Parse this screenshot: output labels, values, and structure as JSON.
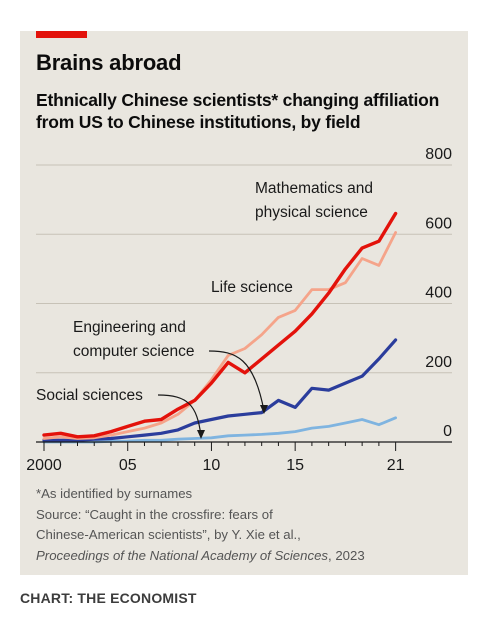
{
  "header": {
    "title": "Brains abroad",
    "subtitle": "Ethnically Chinese scientists* changing affiliation from US to Chinese institutions, by field"
  },
  "footer": {
    "footnote": "*As identified by surnames",
    "source_line1": "Source: “Caught in the crossfire: fears of",
    "source_line2": "Chinese-American scientists”, by Y. Xie et al.,",
    "source_line3_italic": "Proceedings of the National Academy of Sciences",
    "source_line3_year": ", 2023",
    "credit": "CHART: THE ECONOMIST"
  },
  "chart_data": {
    "type": "line",
    "x": [
      2000,
      2001,
      2002,
      2003,
      2004,
      2005,
      2006,
      2007,
      2008,
      2009,
      2010,
      2011,
      2012,
      2013,
      2014,
      2015,
      2016,
      2017,
      2018,
      2019,
      2020,
      2021
    ],
    "xlim": [
      2000,
      2021.5
    ],
    "ylim": [
      0,
      800
    ],
    "y_ticks": [
      0,
      200,
      400,
      600,
      800
    ],
    "x_ticks": [
      {
        "value": 2000,
        "label": "2000"
      },
      {
        "value": 2005,
        "label": "05"
      },
      {
        "value": 2010,
        "label": "10"
      },
      {
        "value": 2015,
        "label": "15"
      },
      {
        "value": 2021,
        "label": "21"
      }
    ],
    "series": [
      {
        "name": "Mathematics and physical science",
        "color": "#e3120b",
        "values": [
          20,
          25,
          15,
          18,
          30,
          45,
          60,
          65,
          95,
          120,
          170,
          230,
          200,
          240,
          280,
          320,
          370,
          430,
          500,
          560,
          580,
          660
        ]
      },
      {
        "name": "Life science",
        "color": "#f5a48a",
        "values": [
          10,
          15,
          10,
          12,
          20,
          30,
          40,
          55,
          80,
          120,
          180,
          250,
          270,
          310,
          360,
          380,
          440,
          440,
          460,
          530,
          510,
          605
        ]
      },
      {
        "name": "Engineering and computer science",
        "color": "#2b3d9c",
        "values": [
          5,
          5,
          5,
          8,
          10,
          15,
          20,
          25,
          35,
          55,
          65,
          75,
          80,
          85,
          120,
          100,
          155,
          150,
          170,
          190,
          240,
          295
        ]
      },
      {
        "name": "Social sciences",
        "color": "#7fb4e0",
        "values": [
          0,
          0,
          0,
          0,
          2,
          3,
          5,
          5,
          8,
          10,
          12,
          18,
          20,
          22,
          25,
          30,
          40,
          45,
          55,
          65,
          50,
          70
        ]
      }
    ],
    "annotations": [
      {
        "text_line1": "Mathematics and",
        "text_line2": "physical science"
      },
      {
        "text_line1": "Life science"
      },
      {
        "text_line1": "Engineering and",
        "text_line2": "computer science"
      },
      {
        "text_line1": "Social sciences"
      }
    ],
    "grid": "horizontal"
  }
}
